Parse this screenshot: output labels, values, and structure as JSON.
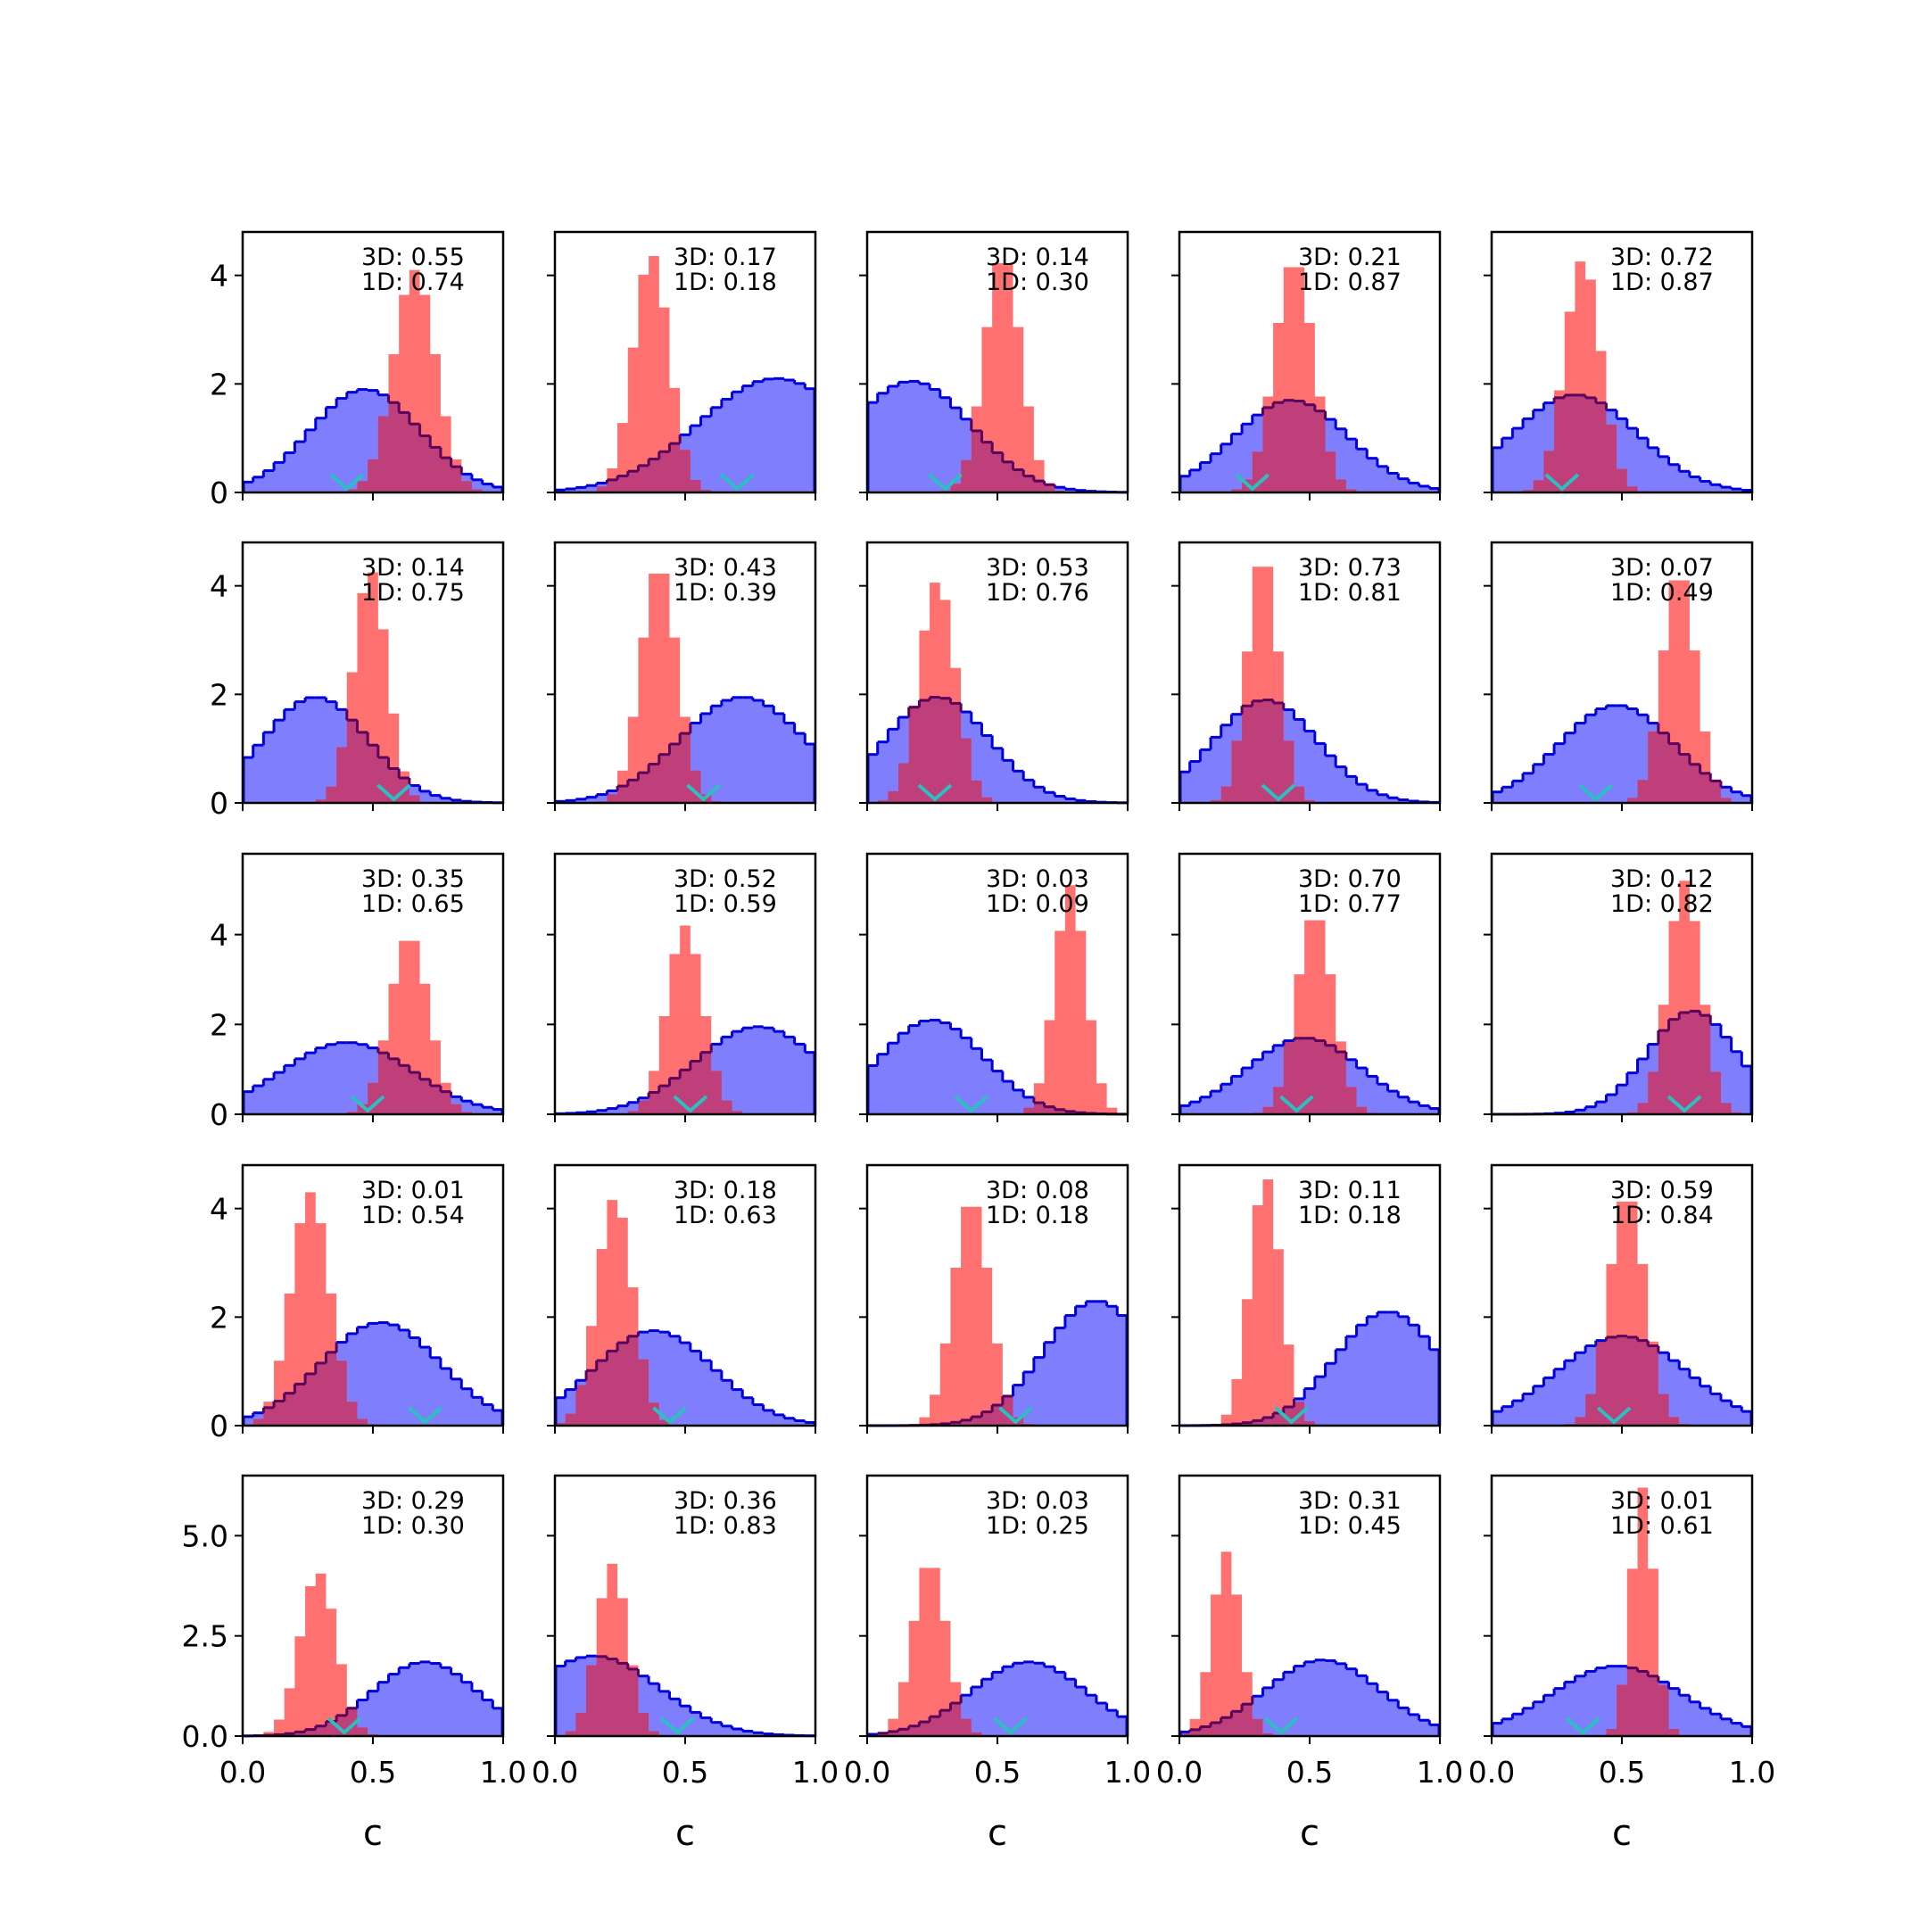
{
  "figure": {
    "rows": 5,
    "cols": 5,
    "x_label": "c",
    "x_tick_labels": [
      "0.0",
      "0.5",
      "1.0"
    ],
    "colors": {
      "blue_fill": "#7f7ffe",
      "blue_line": "#0000dd",
      "red_fill": "#ff7070",
      "overlap_fill": "#bf3f7b",
      "overlap_line": "#5a005a",
      "marker": "#2bbfc0",
      "axis": "#000000"
    }
  },
  "chart_data": {
    "type": "histogram-grid",
    "xlim": [
      0,
      1
    ],
    "row_ylims": [
      [
        0,
        4.8
      ],
      [
        0,
        4.8
      ],
      [
        0,
        5.8
      ],
      [
        0,
        4.8
      ],
      [
        0,
        6.5
      ]
    ],
    "row_y_ticks": [
      [
        "0",
        "2",
        "4"
      ],
      [
        "0",
        "2",
        "4"
      ],
      [
        "0",
        "2",
        "4"
      ],
      [
        "0",
        "2",
        "4"
      ],
      [
        "0.0",
        "2.5",
        "5.0"
      ]
    ],
    "row_y_tick_values": [
      [
        0,
        2,
        4
      ],
      [
        0,
        2,
        4
      ],
      [
        0,
        2,
        4
      ],
      [
        0,
        2,
        4
      ],
      [
        0,
        2.5,
        5
      ]
    ],
    "series_legend": [
      "blue broad histogram",
      "red narrow histogram",
      "cyan marker"
    ],
    "panels": [
      {
        "label_3d": "3D: 0.55",
        "label_1d": "1D: 0.74",
        "blue": {
          "mu": 0.47,
          "sd": 0.21,
          "peak": 1.9
        },
        "red": {
          "mu": 0.66,
          "sd": 0.082,
          "peak": 4.1
        },
        "marker": 0.4
      },
      {
        "label_3d": "3D: 0.17",
        "label_1d": "1D: 0.18",
        "blue": {
          "mu": 0.85,
          "sd": 0.3,
          "peak": 2.1
        },
        "red": {
          "mu": 0.37,
          "sd": 0.07,
          "peak": 4.4
        },
        "marker": 0.7
      },
      {
        "label_3d": "3D: 0.14",
        "label_1d": "1D: 0.30",
        "blue": {
          "mu": 0.17,
          "sd": 0.23,
          "peak": 2.05
        },
        "red": {
          "mu": 0.52,
          "sd": 0.07,
          "peak": 4.4
        },
        "marker": 0.3
      },
      {
        "label_3d": "3D: 0.21",
        "label_1d": "1D: 0.87",
        "blue": {
          "mu": 0.43,
          "sd": 0.22,
          "peak": 1.7
        },
        "red": {
          "mu": 0.44,
          "sd": 0.075,
          "peak": 4.3
        },
        "marker": 0.28
      },
      {
        "label_3d": "3D: 0.72",
        "label_1d": "1D: 0.87",
        "blue": {
          "mu": 0.32,
          "sd": 0.24,
          "peak": 1.8
        },
        "red": {
          "mu": 0.35,
          "sd": 0.07,
          "peak": 4.3
        },
        "marker": 0.27
      },
      {
        "label_3d": "3D: 0.14",
        "label_1d": "1D: 0.75",
        "blue": {
          "mu": 0.28,
          "sd": 0.2,
          "peak": 1.95
        },
        "red": {
          "mu": 0.49,
          "sd": 0.065,
          "peak": 4.3
        },
        "marker": 0.58
      },
      {
        "label_3d": "3D: 0.43",
        "label_1d": "1D: 0.39",
        "blue": {
          "mu": 0.72,
          "sd": 0.24,
          "peak": 1.95
        },
        "red": {
          "mu": 0.4,
          "sd": 0.07,
          "peak": 4.4
        },
        "marker": 0.57
      },
      {
        "label_3d": "3D: 0.53",
        "label_1d": "1D: 0.76",
        "blue": {
          "mu": 0.27,
          "sd": 0.2,
          "peak": 1.95
        },
        "red": {
          "mu": 0.27,
          "sd": 0.07,
          "peak": 4.1
        },
        "marker": 0.26
      },
      {
        "label_3d": "3D: 0.73",
        "label_1d": "1D: 0.81",
        "blue": {
          "mu": 0.33,
          "sd": 0.2,
          "peak": 1.9
        },
        "red": {
          "mu": 0.32,
          "sd": 0.06,
          "peak": 4.6
        },
        "marker": 0.38
      },
      {
        "label_3d": "3D: 0.07",
        "label_1d": "1D: 0.49",
        "blue": {
          "mu": 0.48,
          "sd": 0.22,
          "peak": 1.8
        },
        "red": {
          "mu": 0.72,
          "sd": 0.065,
          "peak": 4.3
        },
        "marker": 0.4
      },
      {
        "label_3d": "3D: 0.35",
        "label_1d": "1D: 0.65",
        "blue": {
          "mu": 0.4,
          "sd": 0.25,
          "peak": 1.6
        },
        "red": {
          "mu": 0.64,
          "sd": 0.075,
          "peak": 4.0
        },
        "marker": 0.48
      },
      {
        "label_3d": "3D: 0.52",
        "label_1d": "1D: 0.59",
        "blue": {
          "mu": 0.78,
          "sd": 0.24,
          "peak": 1.95
        },
        "red": {
          "mu": 0.5,
          "sd": 0.07,
          "peak": 4.2
        },
        "marker": 0.52
      },
      {
        "label_3d": "3D: 0.03",
        "label_1d": "1D: 0.09",
        "blue": {
          "mu": 0.25,
          "sd": 0.2,
          "peak": 2.1
        },
        "red": {
          "mu": 0.78,
          "sd": 0.06,
          "peak": 5.1
        },
        "marker": 0.4
      },
      {
        "label_3d": "3D: 0.70",
        "label_1d": "1D: 0.77",
        "blue": {
          "mu": 0.48,
          "sd": 0.22,
          "peak": 1.7
        },
        "red": {
          "mu": 0.52,
          "sd": 0.07,
          "peak": 4.5
        },
        "marker": 0.45
      },
      {
        "label_3d": "3D: 0.12",
        "label_1d": "1D: 0.82",
        "blue": {
          "mu": 0.77,
          "sd": 0.17,
          "peak": 2.3
        },
        "red": {
          "mu": 0.74,
          "sd": 0.065,
          "peak": 5.2
        },
        "marker": 0.74
      },
      {
        "label_3d": "3D: 0.01",
        "label_1d": "1D: 0.54",
        "blue": {
          "mu": 0.53,
          "sd": 0.23,
          "peak": 1.9
        },
        "red": {
          "mu": 0.26,
          "sd": 0.075,
          "peak": 4.3
        },
        "marker": 0.7
      },
      {
        "label_3d": "3D: 0.18",
        "label_1d": "1D: 0.63",
        "blue": {
          "mu": 0.38,
          "sd": 0.23,
          "peak": 1.75
        },
        "red": {
          "mu": 0.23,
          "sd": 0.07,
          "peak": 4.2
        },
        "marker": 0.44
      },
      {
        "label_3d": "3D: 0.08",
        "label_1d": "1D: 0.18",
        "blue": {
          "mu": 0.88,
          "sd": 0.2,
          "peak": 2.3
        },
        "red": {
          "mu": 0.4,
          "sd": 0.07,
          "peak": 4.2
        },
        "marker": 0.57
      },
      {
        "label_3d": "3D: 0.11",
        "label_1d": "1D: 0.18",
        "blue": {
          "mu": 0.8,
          "sd": 0.2,
          "peak": 2.1
        },
        "red": {
          "mu": 0.33,
          "sd": 0.06,
          "peak": 4.6
        },
        "marker": 0.43
      },
      {
        "label_3d": "3D: 0.59",
        "label_1d": "1D: 0.84",
        "blue": {
          "mu": 0.5,
          "sd": 0.25,
          "peak": 1.65
        },
        "red": {
          "mu": 0.52,
          "sd": 0.07,
          "peak": 4.3
        },
        "marker": 0.47
      },
      {
        "label_3d": "3D: 0.29",
        "label_1d": "1D: 0.30",
        "blue": {
          "mu": 0.7,
          "sd": 0.2,
          "peak": 1.85
        },
        "red": {
          "mu": 0.29,
          "sd": 0.07,
          "peak": 4.1
        },
        "marker": 0.39
      },
      {
        "label_3d": "3D: 0.36",
        "label_1d": "1D: 0.83",
        "blue": {
          "mu": 0.15,
          "sd": 0.25,
          "peak": 2.0
        },
        "red": {
          "mu": 0.22,
          "sd": 0.06,
          "peak": 4.3
        },
        "marker": 0.47
      },
      {
        "label_3d": "3D: 0.03",
        "label_1d": "1D: 0.25",
        "blue": {
          "mu": 0.62,
          "sd": 0.22,
          "peak": 1.85
        },
        "red": {
          "mu": 0.24,
          "sd": 0.065,
          "peak": 4.4
        },
        "marker": 0.55
      },
      {
        "label_3d": "3D: 0.31",
        "label_1d": "1D: 0.45",
        "blue": {
          "mu": 0.55,
          "sd": 0.22,
          "peak": 1.9
        },
        "red": {
          "mu": 0.18,
          "sd": 0.055,
          "peak": 4.6
        },
        "marker": 0.39
      },
      {
        "label_3d": "3D: 0.01",
        "label_1d": "1D: 0.61",
        "blue": {
          "mu": 0.48,
          "sd": 0.25,
          "peak": 1.75
        },
        "red": {
          "mu": 0.58,
          "sd": 0.045,
          "peak": 6.2
        },
        "marker": 0.35
      }
    ]
  }
}
